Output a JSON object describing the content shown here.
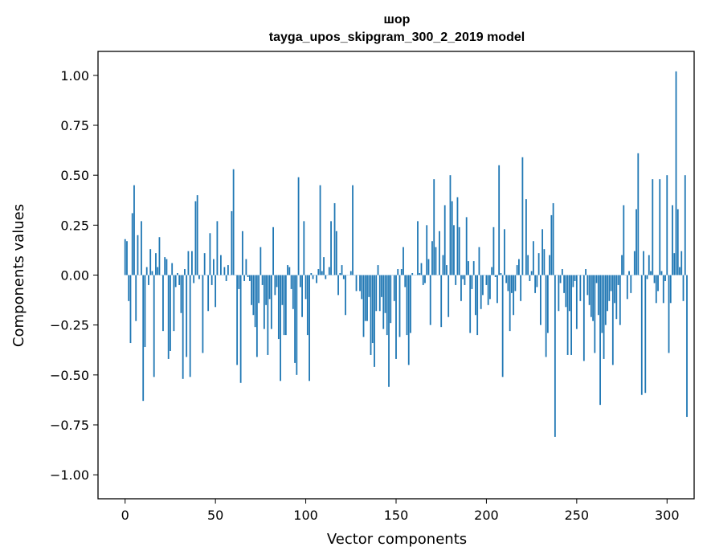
{
  "chart_data": {
    "type": "bar",
    "title_line1": "шор",
    "title_line2": "tayga_upos_skipgram_300_2_2019 model",
    "xlabel": "Vector components",
    "ylabel": "Components values",
    "xlim": [
      -15,
      315
    ],
    "ylim": [
      -1.12,
      1.12
    ],
    "xticks": [
      0,
      50,
      100,
      150,
      200,
      250,
      300
    ],
    "xtick_labels": [
      "0",
      "50",
      "100",
      "150",
      "200",
      "250",
      "300"
    ],
    "yticks": [
      1.0,
      0.75,
      0.5,
      0.25,
      0.0,
      -0.25,
      -0.5,
      -0.75,
      -1.0
    ],
    "ytick_labels": [
      "1.00",
      "0.75",
      "0.50",
      "0.25",
      "0.00",
      "−0.25",
      "−0.50",
      "−0.75",
      "−1.00"
    ],
    "bar_color": "#1f77b4",
    "grid": false,
    "values": [
      0.18,
      0.17,
      -0.13,
      -0.34,
      0.31,
      0.45,
      -0.23,
      0.2,
      0.0,
      0.27,
      -0.63,
      -0.36,
      0.04,
      -0.05,
      0.13,
      0.02,
      -0.51,
      0.11,
      0.04,
      0.19,
      0.0,
      -0.28,
      0.09,
      0.08,
      -0.42,
      -0.38,
      0.06,
      -0.28,
      -0.06,
      0.01,
      -0.05,
      -0.19,
      -0.52,
      0.03,
      -0.41,
      0.12,
      -0.51,
      0.12,
      -0.04,
      0.37,
      0.4,
      -0.02,
      0.0,
      -0.39,
      0.11,
      0.0,
      -0.18,
      0.21,
      -0.05,
      0.08,
      -0.16,
      0.27,
      0.0,
      0.1,
      0.0,
      0.04,
      -0.03,
      0.05,
      0.0,
      0.32,
      0.53,
      0.0,
      -0.45,
      -0.07,
      -0.54,
      0.22,
      -0.03,
      0.08,
      -0.01,
      -0.03,
      -0.15,
      -0.2,
      -0.26,
      -0.41,
      -0.14,
      0.14,
      -0.05,
      -0.27,
      -0.15,
      -0.4,
      -0.12,
      -0.27,
      0.24,
      -0.1,
      -0.06,
      -0.32,
      -0.53,
      -0.15,
      -0.3,
      -0.3,
      0.05,
      0.04,
      -0.07,
      -0.17,
      -0.44,
      -0.5,
      0.49,
      -0.06,
      -0.21,
      0.27,
      -0.12,
      -0.3,
      -0.53,
      0.01,
      -0.02,
      0.0,
      -0.04,
      0.03,
      0.45,
      0.02,
      0.09,
      -0.02,
      0.0,
      0.04,
      0.27,
      0.0,
      0.36,
      0.22,
      -0.1,
      0.01,
      0.05,
      -0.02,
      -0.2,
      0.0,
      0.0,
      0.02,
      0.45,
      0.0,
      -0.08,
      0.0,
      -0.08,
      -0.12,
      -0.31,
      -0.23,
      -0.23,
      -0.11,
      -0.4,
      -0.34,
      -0.46,
      -0.18,
      0.05,
      -0.18,
      -0.11,
      -0.27,
      -0.19,
      -0.3,
      -0.56,
      -0.24,
      0.0,
      -0.13,
      -0.42,
      0.03,
      -0.31,
      0.03,
      0.14,
      -0.06,
      -0.3,
      -0.45,
      -0.29,
      0.01,
      0.0,
      0.0,
      0.27,
      0.01,
      0.06,
      -0.05,
      -0.04,
      0.25,
      0.08,
      -0.25,
      0.17,
      0.48,
      0.14,
      0.0,
      0.22,
      -0.26,
      0.1,
      0.35,
      0.05,
      -0.21,
      0.5,
      0.37,
      0.25,
      -0.05,
      0.39,
      0.24,
      -0.13,
      -0.02,
      -0.05,
      0.29,
      0.07,
      -0.29,
      -0.07,
      0.07,
      -0.2,
      -0.3,
      0.14,
      -0.17,
      -0.1,
      0.0,
      -0.05,
      -0.15,
      -0.12,
      0.04,
      0.24,
      -0.01,
      -0.14,
      0.55,
      0.01,
      -0.51,
      0.23,
      -0.04,
      -0.08,
      -0.28,
      -0.09,
      -0.2,
      -0.08,
      0.05,
      0.08,
      -0.13,
      0.59,
      0.0,
      0.38,
      0.1,
      -0.03,
      0.02,
      0.17,
      -0.09,
      -0.06,
      0.11,
      -0.25,
      0.23,
      0.13,
      -0.41,
      -0.29,
      0.1,
      0.3,
      0.36,
      -0.81,
      0.0,
      -0.18,
      -0.04,
      0.03,
      -0.09,
      -0.16,
      -0.4,
      -0.18,
      -0.4,
      -0.06,
      -0.03,
      -0.27,
      0.0,
      -0.13,
      0.0,
      -0.43,
      0.03,
      -0.1,
      -0.15,
      -0.21,
      -0.23,
      -0.39,
      -0.04,
      -0.2,
      -0.65,
      -0.29,
      -0.42,
      -0.25,
      -0.18,
      -0.13,
      -0.08,
      -0.45,
      -0.14,
      -0.22,
      -0.05,
      -0.25,
      0.1,
      0.35,
      0.0,
      -0.12,
      0.02,
      -0.09,
      0.0,
      0.12,
      0.33,
      0.61,
      0.0,
      -0.6,
      0.12,
      -0.59,
      -0.02,
      0.1,
      0.02,
      0.48,
      -0.04,
      -0.14,
      -0.08,
      0.48,
      0.02,
      -0.14,
      -0.03,
      0.5,
      -0.39,
      -0.14,
      0.35,
      0.11,
      1.02,
      0.33,
      0.04,
      0.12,
      -0.13,
      0.5,
      -0.71
    ]
  }
}
